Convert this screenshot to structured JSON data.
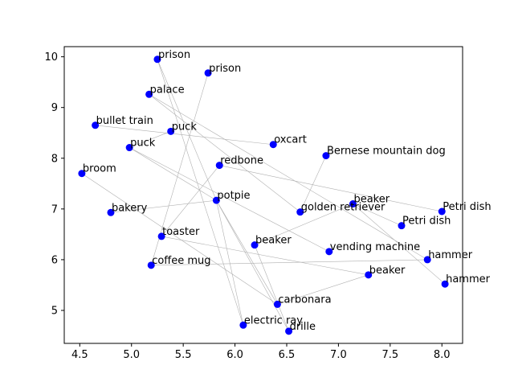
{
  "chart_data": {
    "type": "scatter",
    "title": "",
    "xlabel": "",
    "ylabel": "",
    "xlim": [
      4.35,
      8.2
    ],
    "ylim": [
      4.35,
      10.2
    ],
    "xticks": [
      "4.5",
      "5.0",
      "5.5",
      "6.0",
      "6.5",
      "7.0",
      "7.5",
      "8.0"
    ],
    "yticks": [
      "5",
      "6",
      "7",
      "8",
      "9",
      "10"
    ],
    "grid": false,
    "point_color": "#0000ff",
    "edge_color": "#b0b0b0",
    "points": [
      {
        "label": "prison",
        "x": 5.25,
        "y": 9.95
      },
      {
        "label": "prison",
        "x": 5.74,
        "y": 9.68
      },
      {
        "label": "palace",
        "x": 5.17,
        "y": 9.26
      },
      {
        "label": "bullet train",
        "x": 4.65,
        "y": 8.65
      },
      {
        "label": "puck",
        "x": 5.38,
        "y": 8.53
      },
      {
        "label": "puck",
        "x": 4.98,
        "y": 8.21
      },
      {
        "label": "oxcart",
        "x": 6.37,
        "y": 8.27
      },
      {
        "label": "Bernese mountain dog",
        "x": 6.88,
        "y": 8.05
      },
      {
        "label": "broom",
        "x": 4.52,
        "y": 7.7
      },
      {
        "label": "redbone",
        "x": 5.85,
        "y": 7.86
      },
      {
        "label": "potpie",
        "x": 5.82,
        "y": 7.17
      },
      {
        "label": "beaker",
        "x": 7.14,
        "y": 7.1
      },
      {
        "label": "Petri dish",
        "x": 8.0,
        "y": 6.95
      },
      {
        "label": "golden retriever",
        "x": 6.63,
        "y": 6.94
      },
      {
        "label": "bakery",
        "x": 4.8,
        "y": 6.93
      },
      {
        "label": "Petri dish",
        "x": 7.61,
        "y": 6.67
      },
      {
        "label": "toaster",
        "x": 5.29,
        "y": 6.46
      },
      {
        "label": "beaker",
        "x": 6.19,
        "y": 6.29
      },
      {
        "label": "vending machine",
        "x": 6.91,
        "y": 6.16
      },
      {
        "label": "hammer",
        "x": 7.86,
        "y": 6.0
      },
      {
        "label": "coffee mug",
        "x": 5.19,
        "y": 5.89
      },
      {
        "label": "beaker",
        "x": 7.29,
        "y": 5.7
      },
      {
        "label": "hammer",
        "x": 8.03,
        "y": 5.52
      },
      {
        "label": "carbonara",
        "x": 6.41,
        "y": 5.12
      },
      {
        "label": "electric ray",
        "x": 6.08,
        "y": 4.71
      },
      {
        "label": "drille",
        "x": 6.52,
        "y": 4.59
      }
    ],
    "edges": [
      [
        0,
        10
      ],
      [
        0,
        24
      ],
      [
        1,
        20
      ],
      [
        2,
        13
      ],
      [
        2,
        19
      ],
      [
        3,
        6
      ],
      [
        4,
        5
      ],
      [
        5,
        10
      ],
      [
        5,
        18
      ],
      [
        8,
        23
      ],
      [
        9,
        12
      ],
      [
        9,
        16
      ],
      [
        10,
        14
      ],
      [
        10,
        23
      ],
      [
        10,
        24
      ],
      [
        10,
        25
      ],
      [
        11,
        15
      ],
      [
        11,
        22
      ],
      [
        11,
        17
      ],
      [
        7,
        13
      ],
      [
        16,
        21
      ],
      [
        17,
        25
      ],
      [
        20,
        19
      ],
      [
        21,
        23
      ]
    ]
  }
}
